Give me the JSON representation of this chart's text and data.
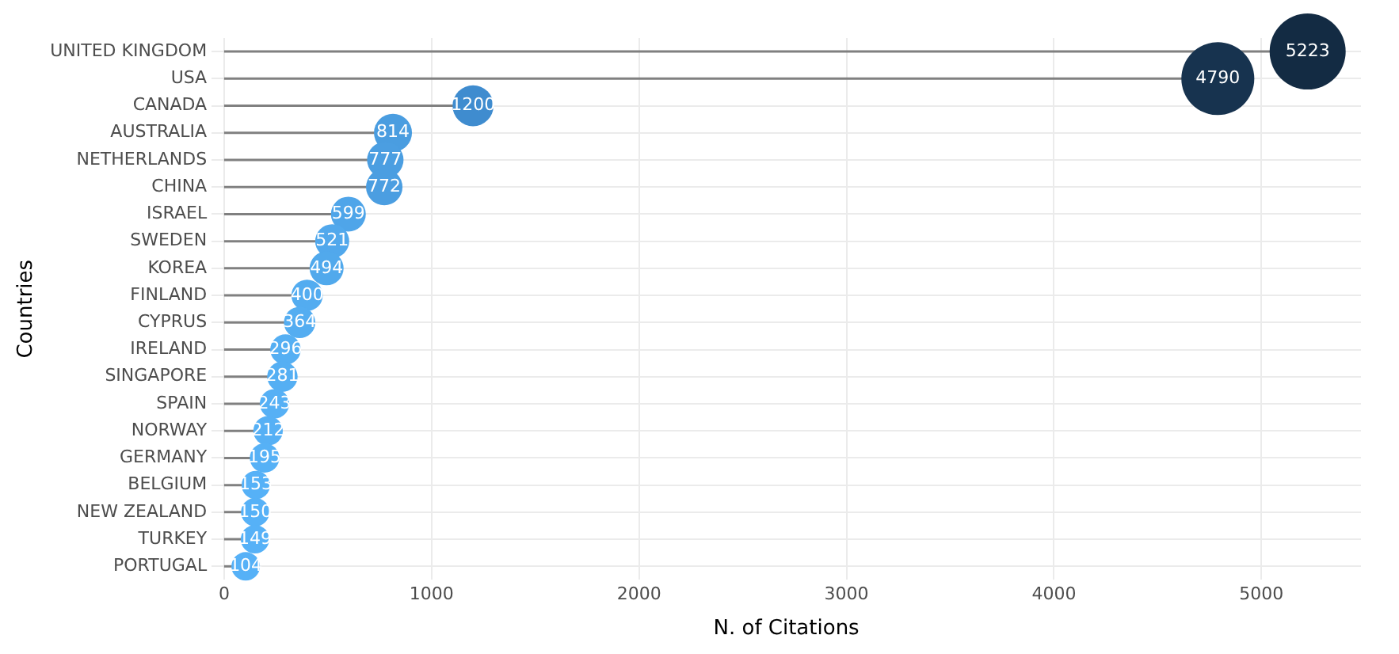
{
  "chart_data": {
    "type": "lollipop",
    "orientation": "horizontal",
    "xlabel": "N. of Citations",
    "ylabel": "Countries",
    "categories": [
      "UNITED KINGDOM",
      "USA",
      "CANADA",
      "AUSTRALIA",
      "NETHERLANDS",
      "CHINA",
      "ISRAEL",
      "SWEDEN",
      "KOREA",
      "FINLAND",
      "CYPRUS",
      "IRELAND",
      "SINGAPORE",
      "SPAIN",
      "NORWAY",
      "GERMANY",
      "BELGIUM",
      "NEW ZEALAND",
      "TURKEY",
      "PORTUGAL"
    ],
    "values": [
      5223,
      4790,
      1200,
      814,
      777,
      772,
      599,
      521,
      494,
      400,
      364,
      296,
      281,
      243,
      212,
      195,
      153,
      150,
      149,
      104
    ],
    "colors": [
      "#132b43",
      "#17334f",
      "#3f8ccf",
      "#4a9de0",
      "#4b9ee1",
      "#4b9ee1",
      "#4fa5e9",
      "#51a8ec",
      "#51a9ec",
      "#53acf0",
      "#54adf1",
      "#55aff3",
      "#55aff3",
      "#56b0f5",
      "#56b0f5",
      "#56b1f6",
      "#56b1f7",
      "#56b1f7",
      "#56b1f7",
      "#56b1f7"
    ],
    "sizes": [
      1,
      0.92,
      0.29,
      0.25,
      0.23,
      0.23,
      0.21,
      0.2,
      0.2,
      0.17,
      0.17,
      0.16,
      0.16,
      0.15,
      0.15,
      0.15,
      0.14,
      0.14,
      0.14,
      0.14
    ],
    "xlim": [
      -60,
      5480
    ],
    "xticks": [
      0,
      1000,
      2000,
      3000,
      4000,
      5000
    ],
    "grid": true,
    "legend": false,
    "data_labels": true
  }
}
